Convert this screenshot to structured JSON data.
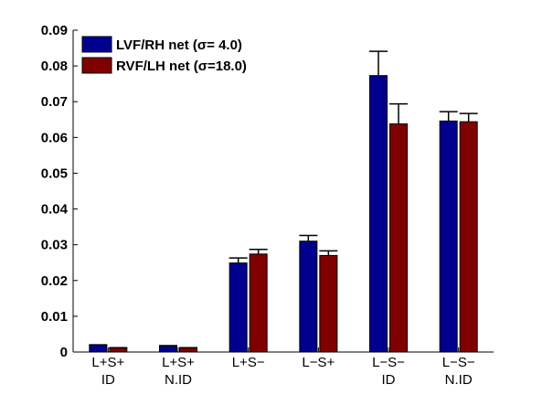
{
  "chart_data": {
    "type": "bar",
    "categories": [
      [
        "L+S+",
        "ID"
      ],
      [
        "L+S+",
        "N.ID"
      ],
      [
        "L+S−",
        ""
      ],
      [
        "L−S+",
        ""
      ],
      [
        "L−S−",
        "ID"
      ],
      [
        "L−S−",
        "N.ID"
      ]
    ],
    "series": [
      {
        "name": "LVF/RH net (σ= 4.0)",
        "color": "#00008f",
        "values": [
          0.0019,
          0.0017,
          0.0249,
          0.031,
          0.0773,
          0.0646
        ],
        "errors": [
          0.0001,
          0.0001,
          0.0014,
          0.0016,
          0.0068,
          0.0026
        ]
      },
      {
        "name": "RVF/LH net (σ=18.0)",
        "color": "#800000",
        "values": [
          0.0011,
          0.0011,
          0.0274,
          0.027,
          0.0638,
          0.0644
        ],
        "errors": [
          0.0001,
          0.0001,
          0.0013,
          0.0013,
          0.0056,
          0.0023
        ]
      }
    ],
    "ylim": [
      0,
      0.09
    ],
    "yticks": [
      "0",
      "0.01",
      "0.02",
      "0.03",
      "0.04",
      "0.05",
      "0.06",
      "0.07",
      "0.08",
      "0.09"
    ],
    "ytick_values": [
      0,
      0.01,
      0.02,
      0.03,
      0.04,
      0.05,
      0.06,
      0.07,
      0.08,
      0.09
    ],
    "legend_position": "top-left",
    "grid": false,
    "title": "",
    "xlabel": "",
    "ylabel": ""
  }
}
